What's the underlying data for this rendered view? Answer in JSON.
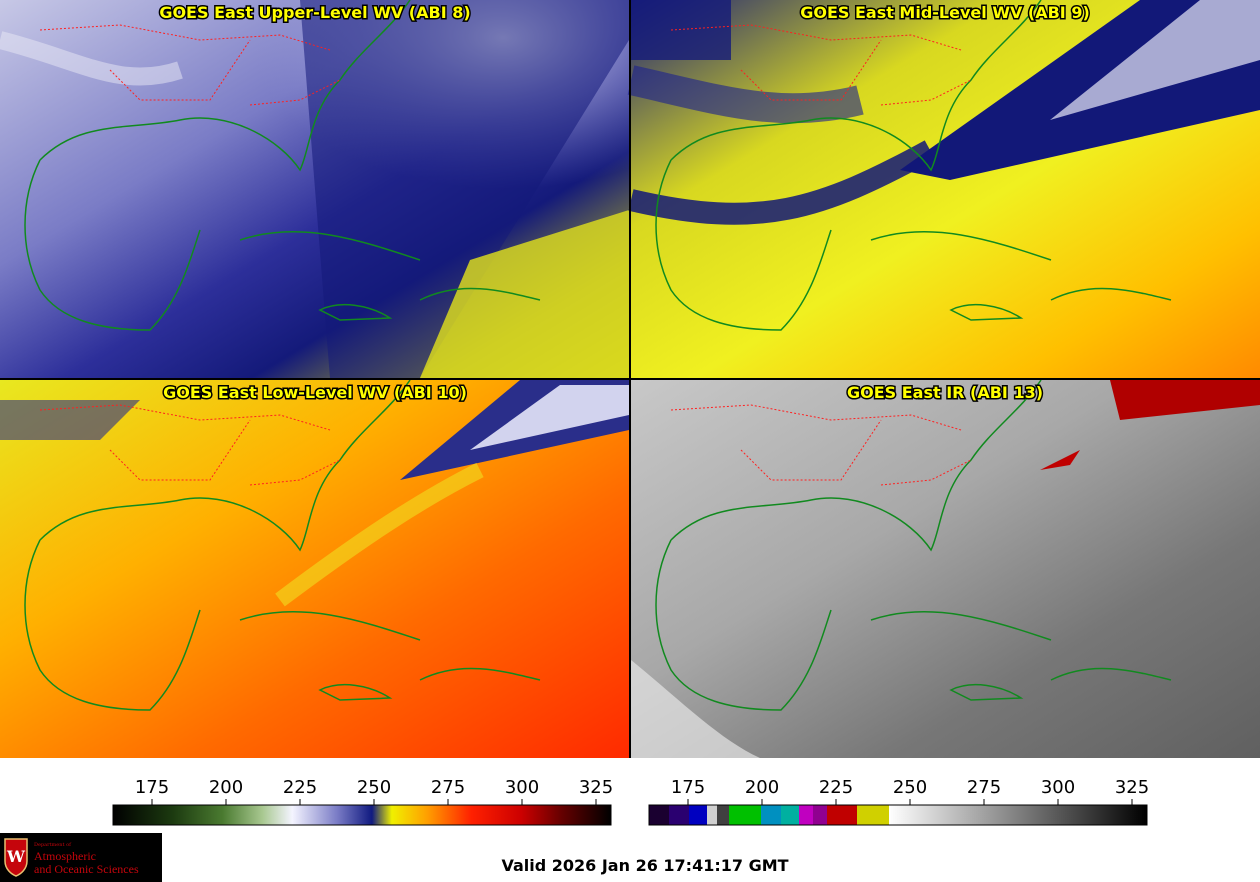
{
  "panels": [
    {
      "title": "GOES East Upper-Level WV (ABI 8)",
      "colormap": "wv"
    },
    {
      "title": "GOES East Mid-Level WV (ABI 9)",
      "colormap": "wv"
    },
    {
      "title": "GOES East Low-Level WV (ABI 10)",
      "colormap": "wv"
    },
    {
      "title": "GOES East IR (ABI 13)",
      "colormap": "ir"
    }
  ],
  "colorbars": [
    {
      "ticks": [
        "175",
        "200",
        "225",
        "250",
        "275",
        "300",
        "325"
      ]
    },
    {
      "ticks": [
        "175",
        "200",
        "225",
        "250",
        "275",
        "300",
        "325"
      ]
    }
  ],
  "valid_time": "Valid 2026 Jan 26 17:41:17 GMT",
  "logo": {
    "dept": "Department of",
    "line1": "Atmospheric",
    "line2": "and Oceanic Sciences",
    "crest_letter": "W"
  },
  "colors": {
    "title_text": "#ffff00",
    "coastline": "#118a1f",
    "state_borders": "#ff2020"
  }
}
